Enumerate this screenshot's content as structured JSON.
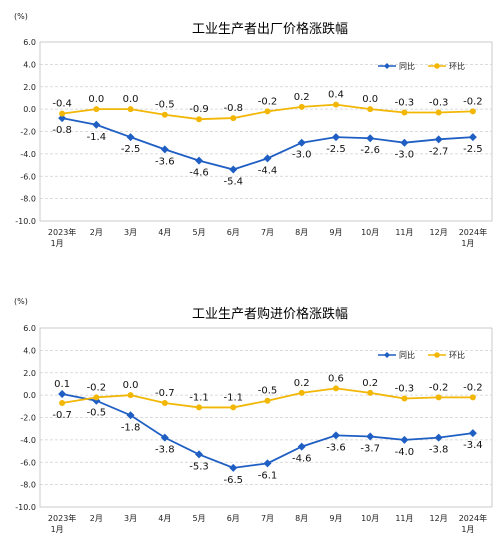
{
  "chart_data": [
    {
      "type": "line",
      "title": "工业生产者出厂价格涨跌幅",
      "unit": "(%)",
      "ylim": [
        -10.0,
        6.0
      ],
      "yticks": [
        "6.0",
        "4.0",
        "2.0",
        "0.0",
        "-2.0",
        "-4.0",
        "-6.0",
        "-8.0",
        "-10.0"
      ],
      "categories": [
        [
          "2023年",
          "1月"
        ],
        [
          "2月"
        ],
        [
          "3月"
        ],
        [
          "4月"
        ],
        [
          "5月"
        ],
        [
          "6月"
        ],
        [
          "7月"
        ],
        [
          "8月"
        ],
        [
          "9月"
        ],
        [
          "10月"
        ],
        [
          "11月"
        ],
        [
          "12月"
        ],
        [
          "2024年",
          "1月"
        ]
      ],
      "legend_position": "top-right",
      "series": [
        {
          "name": "同比",
          "color": "#1f5fc4",
          "marker": "diamond",
          "values": [
            -0.8,
            -1.4,
            -2.5,
            -3.6,
            -4.6,
            -5.4,
            -4.4,
            -3.0,
            -2.5,
            -2.6,
            -3.0,
            -2.7,
            -2.5
          ],
          "labels": [
            "-0.8",
            "-1.4",
            "-2.5",
            "-3.6",
            "-4.6",
            "-5.4",
            "-4.4",
            "-3.0",
            "-2.5",
            "-2.6",
            "-3.0",
            "-2.7",
            "-2.5"
          ]
        },
        {
          "name": "环比",
          "color": "#f2b705",
          "marker": "circle",
          "values": [
            -0.4,
            0.0,
            0.0,
            -0.5,
            -0.9,
            -0.8,
            -0.2,
            0.2,
            0.4,
            0.0,
            -0.3,
            -0.3,
            -0.2
          ],
          "labels": [
            "-0.4",
            "0.0",
            "0.0",
            "-0.5",
            "-0.9",
            "-0.8",
            "-0.2",
            "0.2",
            "0.4",
            "0.0",
            "-0.3",
            "-0.3",
            "-0.2"
          ]
        }
      ]
    },
    {
      "type": "line",
      "title": "工业生产者购进价格涨跌幅",
      "unit": "(%)",
      "ylim": [
        -10.0,
        6.0
      ],
      "yticks": [
        "6.0",
        "4.0",
        "2.0",
        "0.0",
        "-2.0",
        "-4.0",
        "-6.0",
        "-8.0",
        "-10.0"
      ],
      "categories": [
        [
          "2023年",
          "1月"
        ],
        [
          "2月"
        ],
        [
          "3月"
        ],
        [
          "4月"
        ],
        [
          "5月"
        ],
        [
          "6月"
        ],
        [
          "7月"
        ],
        [
          "8月"
        ],
        [
          "9月"
        ],
        [
          "10月"
        ],
        [
          "11月"
        ],
        [
          "12月"
        ],
        [
          "2024年",
          "1月"
        ]
      ],
      "legend_position": "top-right",
      "series": [
        {
          "name": "同比",
          "color": "#1f5fc4",
          "marker": "diamond",
          "values": [
            0.1,
            -0.5,
            -1.8,
            -3.8,
            -5.3,
            -6.5,
            -6.1,
            -4.6,
            -3.6,
            -3.7,
            -4.0,
            -3.8,
            -3.4
          ],
          "labels": [
            "0.1",
            "-0.5",
            "-1.8",
            "-3.8",
            "-5.3",
            "-6.5",
            "-6.1",
            "-4.6",
            "-3.6",
            "-3.7",
            "-4.0",
            "-3.8",
            "-3.4"
          ]
        },
        {
          "name": "环比",
          "color": "#f2b705",
          "marker": "circle",
          "values": [
            -0.7,
            -0.2,
            0.0,
            -0.7,
            -1.1,
            -1.1,
            -0.5,
            0.2,
            0.6,
            0.2,
            -0.3,
            -0.2,
            -0.2
          ],
          "labels": [
            "-0.7",
            "-0.2",
            "0.0",
            "-0.7",
            "-1.1",
            "-1.1",
            "-0.5",
            "0.2",
            "0.6",
            "0.2",
            "-0.3",
            "-0.2",
            "-0.2"
          ]
        }
      ]
    }
  ]
}
